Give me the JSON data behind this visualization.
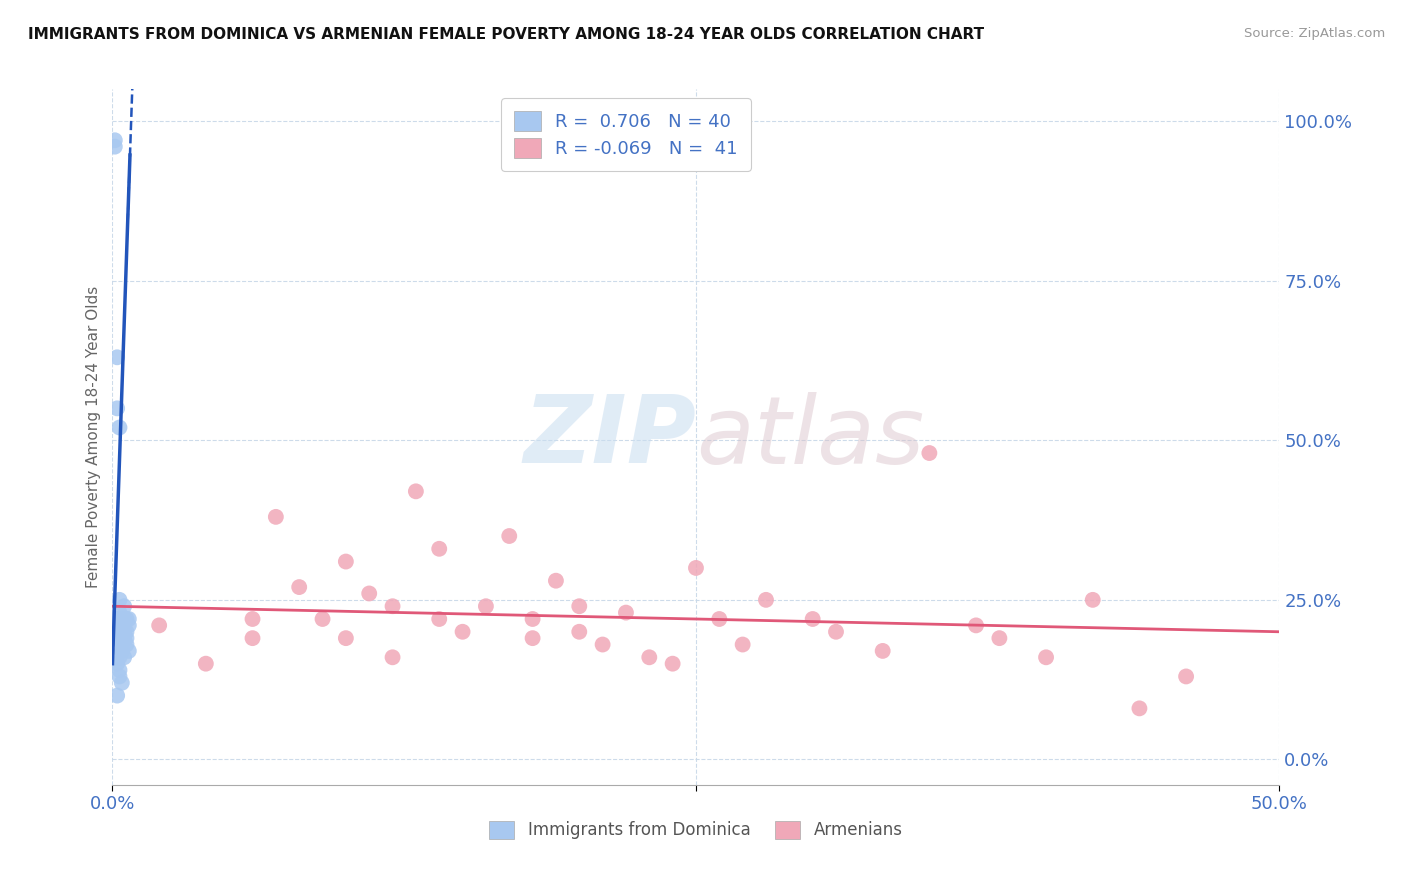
{
  "title": "IMMIGRANTS FROM DOMINICA VS ARMENIAN FEMALE POVERTY AMONG 18-24 YEAR OLDS CORRELATION CHART",
  "source": "Source: ZipAtlas.com",
  "ylabel": "Female Poverty Among 18-24 Year Olds",
  "xlim": [
    0.0,
    0.5
  ],
  "ylim": [
    -0.04,
    1.05
  ],
  "blue_R": 0.706,
  "blue_N": 40,
  "pink_R": -0.069,
  "pink_N": 41,
  "blue_color": "#a8c8f0",
  "pink_color": "#f0a8b8",
  "blue_line_color": "#2255bb",
  "pink_line_color": "#e05878",
  "legend_label_blue": "Immigrants from Dominica",
  "legend_label_pink": "Armenians",
  "watermark_zip": "ZIP",
  "watermark_atlas": "atlas",
  "blue_scatter_x": [
    0.001,
    0.001,
    0.002,
    0.002,
    0.002,
    0.002,
    0.002,
    0.003,
    0.003,
    0.003,
    0.003,
    0.003,
    0.003,
    0.004,
    0.004,
    0.004,
    0.004,
    0.004,
    0.005,
    0.005,
    0.005,
    0.005,
    0.005,
    0.006,
    0.006,
    0.006,
    0.006,
    0.007,
    0.007,
    0.007,
    0.002,
    0.003,
    0.003,
    0.004,
    0.002,
    0.003,
    0.004,
    0.003,
    0.002,
    0.005
  ],
  "blue_scatter_y": [
    0.97,
    0.96,
    0.63,
    0.2,
    0.19,
    0.22,
    0.21,
    0.25,
    0.23,
    0.21,
    0.2,
    0.19,
    0.22,
    0.2,
    0.18,
    0.17,
    0.22,
    0.21,
    0.2,
    0.19,
    0.22,
    0.21,
    0.16,
    0.2,
    0.19,
    0.18,
    0.22,
    0.21,
    0.17,
    0.22,
    0.15,
    0.14,
    0.13,
    0.12,
    0.55,
    0.52,
    0.17,
    0.16,
    0.1,
    0.24
  ],
  "pink_scatter_x": [
    0.02,
    0.04,
    0.06,
    0.06,
    0.07,
    0.08,
    0.09,
    0.1,
    0.1,
    0.11,
    0.12,
    0.12,
    0.13,
    0.14,
    0.14,
    0.15,
    0.16,
    0.17,
    0.18,
    0.18,
    0.19,
    0.2,
    0.2,
    0.21,
    0.22,
    0.23,
    0.24,
    0.25,
    0.26,
    0.27,
    0.28,
    0.3,
    0.31,
    0.33,
    0.35,
    0.37,
    0.38,
    0.4,
    0.42,
    0.44,
    0.46
  ],
  "pink_scatter_y": [
    0.21,
    0.15,
    0.22,
    0.19,
    0.38,
    0.27,
    0.22,
    0.31,
    0.19,
    0.26,
    0.24,
    0.16,
    0.42,
    0.22,
    0.33,
    0.2,
    0.24,
    0.35,
    0.19,
    0.22,
    0.28,
    0.24,
    0.2,
    0.18,
    0.23,
    0.16,
    0.15,
    0.3,
    0.22,
    0.18,
    0.25,
    0.22,
    0.2,
    0.17,
    0.48,
    0.21,
    0.19,
    0.16,
    0.25,
    0.08,
    0.13
  ]
}
